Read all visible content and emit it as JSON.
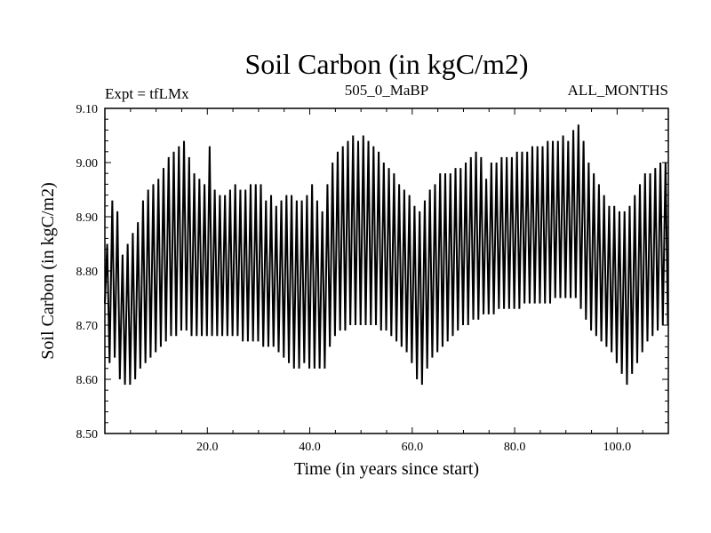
{
  "chart_data": {
    "type": "line",
    "title": "Soil Carbon (in kgC/m2)",
    "subtitle_left": "Expt = tfLMx",
    "subtitle_center": "505_0_MaBP",
    "subtitle_right": "ALL_MONTHS",
    "xlabel": "Time (in years since start)",
    "ylabel": "Soil Carbon (in kgC/m2)",
    "xlim": [
      0,
      110
    ],
    "ylim": [
      8.5,
      9.1
    ],
    "x_ticks": [
      20,
      40,
      60,
      80,
      100
    ],
    "x_tick_labels": [
      "20.0",
      "40.0",
      "60.0",
      "80.0",
      "100.0"
    ],
    "y_ticks": [
      8.5,
      8.6,
      8.7,
      8.8,
      8.9,
      9.0,
      9.1
    ],
    "y_tick_labels": [
      "8.50",
      "8.60",
      "8.70",
      "8.80",
      "8.90",
      "9.00",
      "9.10"
    ],
    "series": [
      {
        "name": "Soil Carbon",
        "color": "#000000",
        "period_years": 1,
        "annual_max": [
          8.85,
          8.93,
          8.91,
          8.83,
          8.85,
          8.87,
          8.89,
          8.93,
          8.95,
          8.96,
          8.97,
          8.99,
          9.01,
          9.02,
          9.03,
          9.04,
          9.01,
          8.98,
          8.97,
          8.96,
          9.03,
          8.95,
          8.94,
          8.94,
          8.95,
          8.96,
          8.95,
          8.95,
          8.96,
          8.96,
          8.96,
          8.93,
          8.94,
          8.92,
          8.93,
          8.94,
          8.94,
          8.93,
          8.93,
          8.94,
          8.96,
          8.93,
          8.91,
          8.96,
          9.0,
          9.02,
          9.03,
          9.04,
          9.05,
          9.04,
          9.05,
          9.04,
          9.03,
          9.02,
          9.0,
          8.99,
          8.98,
          8.96,
          8.95,
          8.94,
          8.92,
          8.91,
          8.93,
          8.95,
          8.96,
          8.98,
          8.98,
          8.98,
          8.99,
          8.99,
          9.0,
          9.01,
          9.02,
          9.01,
          8.97,
          9.0,
          9.0,
          9.01,
          9.01,
          9.01,
          9.02,
          9.02,
          9.02,
          9.03,
          9.03,
          9.03,
          9.04,
          9.04,
          9.04,
          9.05,
          9.04,
          9.06,
          9.07,
          9.04,
          9.0,
          8.98,
          8.96,
          8.94,
          8.92,
          8.92,
          8.91,
          8.91,
          8.92,
          8.94,
          8.96,
          8.98,
          8.98,
          8.99,
          9.0,
          9.0
        ],
        "annual_min": [
          8.63,
          8.64,
          8.6,
          8.59,
          8.59,
          8.6,
          8.62,
          8.63,
          8.64,
          8.65,
          8.66,
          8.67,
          8.68,
          8.68,
          8.69,
          8.69,
          8.68,
          8.68,
          8.68,
          8.68,
          8.68,
          8.68,
          8.68,
          8.68,
          8.68,
          8.68,
          8.67,
          8.67,
          8.67,
          8.67,
          8.66,
          8.66,
          8.66,
          8.65,
          8.64,
          8.63,
          8.62,
          8.62,
          8.63,
          8.62,
          8.62,
          8.62,
          8.62,
          8.66,
          8.68,
          8.69,
          8.69,
          8.7,
          8.7,
          8.7,
          8.7,
          8.7,
          8.7,
          8.69,
          8.69,
          8.68,
          8.67,
          8.66,
          8.65,
          8.63,
          8.6,
          8.59,
          8.62,
          8.64,
          8.65,
          8.66,
          8.67,
          8.68,
          8.69,
          8.7,
          8.7,
          8.71,
          8.71,
          8.72,
          8.72,
          8.72,
          8.73,
          8.73,
          8.73,
          8.73,
          8.73,
          8.74,
          8.74,
          8.74,
          8.74,
          8.74,
          8.74,
          8.75,
          8.75,
          8.75,
          8.75,
          8.75,
          8.73,
          8.71,
          8.69,
          8.68,
          8.67,
          8.66,
          8.65,
          8.63,
          8.61,
          8.59,
          8.61,
          8.63,
          8.65,
          8.67,
          8.68,
          8.69,
          8.7,
          8.7
        ]
      }
    ]
  }
}
